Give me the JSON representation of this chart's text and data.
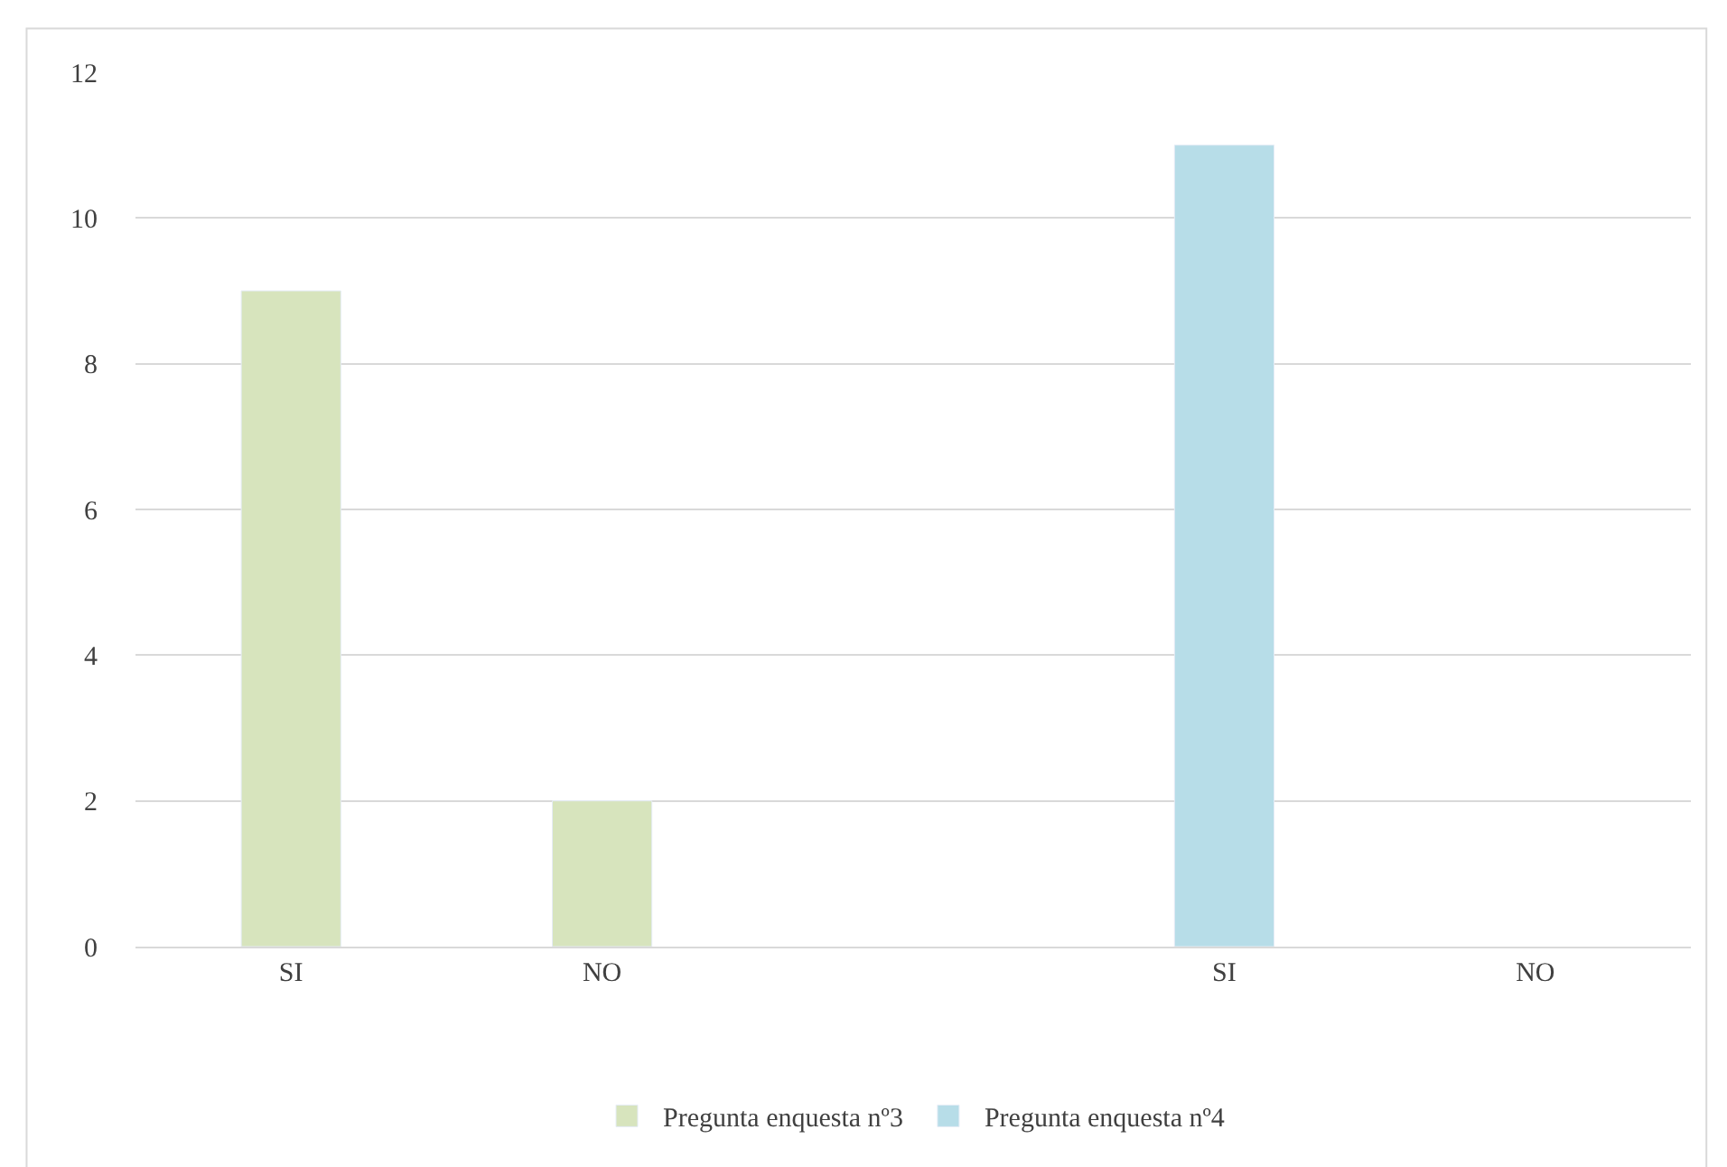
{
  "chart_data": {
    "type": "bar",
    "categories": [
      "SI",
      "NO",
      null,
      "SI",
      "NO"
    ],
    "series": [
      {
        "name": "Pregunta enquesta nº3",
        "color": "#d7e4bd",
        "values": [
          9,
          2,
          null,
          null,
          null
        ]
      },
      {
        "name": "Pregunta enquesta nº4",
        "color": "#b7dde8",
        "values": [
          null,
          null,
          null,
          11,
          null
        ]
      }
    ],
    "ylim": [
      0,
      12
    ],
    "yticks": [
      0,
      2,
      4,
      6,
      8,
      10,
      12
    ],
    "grid": "y",
    "legend": "bottom"
  }
}
